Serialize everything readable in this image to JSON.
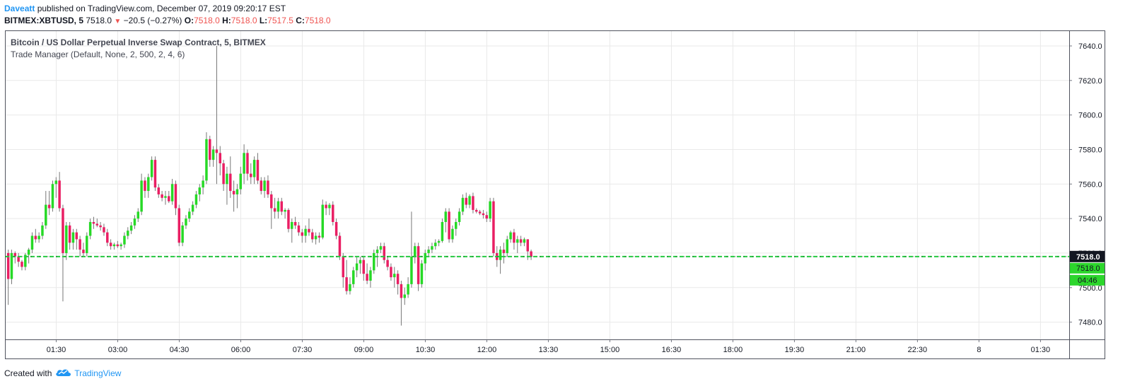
{
  "header": {
    "author": "Daveatt",
    "published": " published on TradingView.com, December 07, 2019 09:20:17 EST",
    "symbol": "BITMEX:XBTUSD, 5",
    "last": "7518.0",
    "change": "−20.5 (−0.27%)",
    "o_label": "O:",
    "o_value": "7518.0",
    "h_label": "H:",
    "h_value": "7518.0",
    "l_label": "L:",
    "l_value": "7517.5",
    "c_label": "C:",
    "c_value": "7518.0"
  },
  "legend": {
    "title": "Bitcoin / US Dollar Perpetual Inverse Swap Contract, 5, BITMEX",
    "indicator": "Trade Manager (Default, None, 2, 500, 2, 4, 6)"
  },
  "footer": {
    "created_with": "Created with",
    "brand": "TradingView"
  },
  "chart_data": {
    "type": "candlestick",
    "y_ticks": [
      "7640.0",
      "7620.0",
      "7600.0",
      "7580.0",
      "7560.0",
      "7540.0",
      "7520.0",
      "7500.0",
      "7480.0"
    ],
    "y_tick_values": [
      7640,
      7620,
      7600,
      7580,
      7560,
      7540,
      7520,
      7500,
      7480
    ],
    "ylim": [
      7470,
      7649
    ],
    "x_ticks": [
      "01:30",
      "03:00",
      "04:30",
      "06:00",
      "07:30",
      "09:00",
      "10:30",
      "12:00",
      "13:30",
      "15:00",
      "16:30",
      "18:00",
      "19:30",
      "21:00",
      "22:30",
      "8",
      "01:30"
    ],
    "x_tick_hours": [
      1.5,
      3,
      4.5,
      6,
      7.5,
      9,
      10.5,
      12,
      13.5,
      15,
      16.5,
      18,
      19.5,
      21,
      22.5,
      24,
      25.5
    ],
    "xlim_hours": [
      0.25,
      26.2
    ],
    "bar_minutes": 5,
    "first_bar_hour": 0.33,
    "last_price": "7518.0",
    "price_line": 7518,
    "green_label": "7518.0",
    "countdown": "04:46",
    "colors": {
      "up": "#26d926",
      "down": "#e91e63",
      "grid": "#e9e9e9",
      "price_line": "#26c940",
      "last_label_bg": "#131722",
      "green_label_bg": "#2cd62c"
    },
    "candles": [
      [
        7520,
        7522,
        7490,
        7505
      ],
      [
        7505,
        7522,
        7502,
        7520
      ],
      [
        7520,
        7521,
        7514,
        7518
      ],
      [
        7518,
        7520,
        7512,
        7515
      ],
      [
        7515,
        7516,
        7510,
        7512
      ],
      [
        7512,
        7520,
        7510,
        7519
      ],
      [
        7519,
        7523,
        7514,
        7522
      ],
      [
        7522,
        7532,
        7520,
        7530
      ],
      [
        7530,
        7534,
        7526,
        7528
      ],
      [
        7528,
        7532,
        7526,
        7530
      ],
      [
        7530,
        7538,
        7528,
        7536
      ],
      [
        7536,
        7556,
        7534,
        7548
      ],
      [
        7548,
        7556,
        7542,
        7546
      ],
      [
        7546,
        7562,
        7544,
        7560
      ],
      [
        7560,
        7564,
        7552,
        7562
      ],
      [
        7562,
        7567,
        7544,
        7546
      ],
      [
        7546,
        7548,
        7492,
        7520
      ],
      [
        7520,
        7538,
        7516,
        7536
      ],
      [
        7536,
        7538,
        7522,
        7526
      ],
      [
        7526,
        7534,
        7522,
        7532
      ],
      [
        7532,
        7534,
        7522,
        7528
      ],
      [
        7528,
        7530,
        7518,
        7522
      ],
      [
        7522,
        7526,
        7518,
        7520
      ],
      [
        7520,
        7532,
        7518,
        7530
      ],
      [
        7530,
        7540,
        7528,
        7538
      ],
      [
        7538,
        7541,
        7534,
        7537
      ],
      [
        7537,
        7540,
        7535,
        7536
      ],
      [
        7536,
        7538,
        7533,
        7535
      ],
      [
        7535,
        7537,
        7530,
        7532
      ],
      [
        7532,
        7534,
        7524,
        7526
      ],
      [
        7526,
        7528,
        7522,
        7524
      ],
      [
        7524,
        7526,
        7522,
        7525
      ],
      [
        7525,
        7527,
        7523,
        7524
      ],
      [
        7524,
        7526,
        7522,
        7525
      ],
      [
        7525,
        7532,
        7523,
        7530
      ],
      [
        7530,
        7535,
        7528,
        7533
      ],
      [
        7533,
        7538,
        7531,
        7536
      ],
      [
        7536,
        7542,
        7534,
        7540
      ],
      [
        7540,
        7546,
        7538,
        7544
      ],
      [
        7544,
        7566,
        7542,
        7562
      ],
      [
        7562,
        7564,
        7552,
        7556
      ],
      [
        7556,
        7566,
        7552,
        7564
      ],
      [
        7564,
        7576,
        7562,
        7574
      ],
      [
        7574,
        7576,
        7556,
        7558
      ],
      [
        7558,
        7560,
        7552,
        7554
      ],
      [
        7554,
        7556,
        7550,
        7552
      ],
      [
        7552,
        7556,
        7548,
        7553
      ],
      [
        7553,
        7556,
        7549,
        7550
      ],
      [
        7550,
        7563,
        7548,
        7560
      ],
      [
        7560,
        7562,
        7542,
        7546
      ],
      [
        7546,
        7548,
        7524,
        7526
      ],
      [
        7526,
        7538,
        7524,
        7536
      ],
      [
        7536,
        7542,
        7534,
        7540
      ],
      [
        7540,
        7546,
        7538,
        7544
      ],
      [
        7544,
        7550,
        7542,
        7548
      ],
      [
        7548,
        7556,
        7546,
        7554
      ],
      [
        7554,
        7560,
        7550,
        7558
      ],
      [
        7558,
        7565,
        7554,
        7562
      ],
      [
        7562,
        7590,
        7560,
        7586
      ],
      [
        7586,
        7588,
        7570,
        7574
      ],
      [
        7574,
        7582,
        7570,
        7580
      ],
      [
        7580,
        7640,
        7560,
        7578
      ],
      [
        7578,
        7582,
        7565,
        7572
      ],
      [
        7572,
        7574,
        7556,
        7560
      ],
      [
        7560,
        7570,
        7548,
        7566
      ],
      [
        7566,
        7576,
        7552,
        7556
      ],
      [
        7556,
        7562,
        7544,
        7554
      ],
      [
        7554,
        7560,
        7546,
        7557
      ],
      [
        7557,
        7570,
        7554,
        7566
      ],
      [
        7566,
        7583,
        7560,
        7578
      ],
      [
        7578,
        7580,
        7562,
        7566
      ],
      [
        7566,
        7572,
        7560,
        7564
      ],
      [
        7564,
        7576,
        7560,
        7574
      ],
      [
        7574,
        7578,
        7560,
        7562
      ],
      [
        7562,
        7564,
        7554,
        7556
      ],
      [
        7556,
        7564,
        7552,
        7562
      ],
      [
        7562,
        7565,
        7552,
        7554
      ],
      [
        7554,
        7556,
        7534,
        7546
      ],
      [
        7546,
        7552,
        7540,
        7544
      ],
      [
        7544,
        7552,
        7540,
        7550
      ],
      [
        7550,
        7552,
        7542,
        7544
      ],
      [
        7544,
        7546,
        7540,
        7545
      ],
      [
        7545,
        7546,
        7532,
        7534
      ],
      [
        7534,
        7540,
        7526,
        7538
      ],
      [
        7538,
        7541,
        7534,
        7536
      ],
      [
        7536,
        7538,
        7530,
        7532
      ],
      [
        7532,
        7534,
        7526,
        7530
      ],
      [
        7530,
        7536,
        7526,
        7534
      ],
      [
        7534,
        7540,
        7530,
        7532
      ],
      [
        7532,
        7534,
        7526,
        7528
      ],
      [
        7528,
        7532,
        7525,
        7530
      ],
      [
        7530,
        7532,
        7526,
        7529
      ],
      [
        7529,
        7551,
        7528,
        7548
      ],
      [
        7548,
        7550,
        7542,
        7546
      ],
      [
        7546,
        7549,
        7542,
        7548
      ],
      [
        7548,
        7550,
        7536,
        7538
      ],
      [
        7538,
        7540,
        7528,
        7530
      ],
      [
        7530,
        7532,
        7516,
        7518
      ],
      [
        7518,
        7520,
        7500,
        7506
      ],
      [
        7506,
        7516,
        7496,
        7498
      ],
      [
        7498,
        7506,
        7496,
        7502
      ],
      [
        7502,
        7512,
        7500,
        7510
      ],
      [
        7510,
        7518,
        7506,
        7514
      ],
      [
        7514,
        7518,
        7508,
        7516
      ],
      [
        7516,
        7518,
        7504,
        7508
      ],
      [
        7508,
        7514,
        7502,
        7504
      ],
      [
        7504,
        7512,
        7500,
        7510
      ],
      [
        7510,
        7522,
        7508,
        7520
      ],
      [
        7520,
        7524,
        7512,
        7522
      ],
      [
        7522,
        7526,
        7520,
        7524
      ],
      [
        7524,
        7526,
        7514,
        7516
      ],
      [
        7516,
        7518,
        7510,
        7512
      ],
      [
        7512,
        7514,
        7504,
        7506
      ],
      [
        7506,
        7512,
        7500,
        7508
      ],
      [
        7508,
        7510,
        7496,
        7502
      ],
      [
        7502,
        7504,
        7478,
        7494
      ],
      [
        7494,
        7500,
        7490,
        7496
      ],
      [
        7496,
        7506,
        7494,
        7502
      ],
      [
        7502,
        7544,
        7500,
        7518
      ],
      [
        7518,
        7526,
        7514,
        7524
      ],
      [
        7524,
        7526,
        7498,
        7502
      ],
      [
        7502,
        7516,
        7500,
        7514
      ],
      [
        7514,
        7522,
        7510,
        7520
      ],
      [
        7520,
        7524,
        7518,
        7522
      ],
      [
        7522,
        7526,
        7520,
        7524
      ],
      [
        7524,
        7528,
        7522,
        7526
      ],
      [
        7526,
        7528,
        7524,
        7527
      ],
      [
        7527,
        7540,
        7526,
        7538
      ],
      [
        7538,
        7546,
        7532,
        7544
      ],
      [
        7544,
        7546,
        7526,
        7528
      ],
      [
        7528,
        7536,
        7526,
        7534
      ],
      [
        7534,
        7540,
        7530,
        7538
      ],
      [
        7538,
        7546,
        7536,
        7544
      ],
      [
        7544,
        7554,
        7542,
        7552
      ],
      [
        7552,
        7555,
        7546,
        7548
      ],
      [
        7548,
        7554,
        7546,
        7553
      ],
      [
        7553,
        7555,
        7543,
        7545
      ],
      [
        7545,
        7546,
        7543,
        7544
      ],
      [
        7544,
        7545,
        7542,
        7543
      ],
      [
        7543,
        7545,
        7540,
        7542
      ],
      [
        7542,
        7544,
        7538,
        7540
      ],
      [
        7540,
        7552,
        7538,
        7550
      ],
      [
        7550,
        7552,
        7518,
        7520
      ],
      [
        7520,
        7524,
        7512,
        7516
      ],
      [
        7516,
        7524,
        7508,
        7522
      ],
      [
        7522,
        7526,
        7514,
        7520
      ],
      [
        7520,
        7530,
        7518,
        7528
      ],
      [
        7528,
        7533,
        7526,
        7532
      ],
      [
        7532,
        7534,
        7522,
        7526
      ],
      [
        7526,
        7530,
        7520,
        7528
      ],
      [
        7528,
        7530,
        7524,
        7526
      ],
      [
        7526,
        7529,
        7524,
        7528
      ],
      [
        7528,
        7528,
        7516,
        7521
      ],
      [
        7521,
        7522,
        7516,
        7518
      ]
    ]
  }
}
